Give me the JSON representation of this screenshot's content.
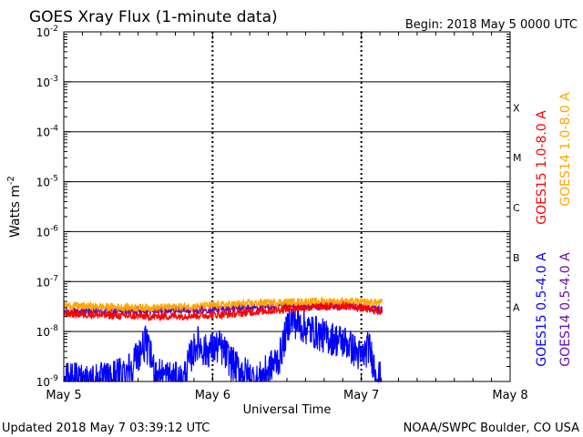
{
  "chart_data": {
    "type": "line",
    "title": "GOES Xray Flux (1-minute data)",
    "begin_label": "Begin:  2018 May 5 0000 UTC",
    "xlabel": "Universal Time",
    "ylabel": "Watts m",
    "ylabel_superscript": "-2",
    "y_scale": "log",
    "ylim": [
      1e-09,
      0.01
    ],
    "y_ticks": [
      {
        "mantissa": "10",
        "exp": "-9"
      },
      {
        "mantissa": "10",
        "exp": "-8"
      },
      {
        "mantissa": "10",
        "exp": "-7"
      },
      {
        "mantissa": "10",
        "exp": "-6"
      },
      {
        "mantissa": "10",
        "exp": "-5"
      },
      {
        "mantissa": "10",
        "exp": "-4"
      },
      {
        "mantissa": "10",
        "exp": "-3"
      },
      {
        "mantissa": "10",
        "exp": "-2"
      }
    ],
    "x_range_days": [
      0,
      3
    ],
    "x_ticks": [
      "May 5",
      "May 6",
      "May 7",
      "May 8"
    ],
    "flare_classes": [
      "A",
      "B",
      "C",
      "M",
      "X"
    ],
    "grid": true,
    "legend_placement": "right",
    "series": [
      {
        "name": "GOES15 1.0-8.0 A",
        "color": "#ff0000",
        "end_day": 2.14,
        "points": [
          [
            0,
            2.3e-08
          ],
          [
            0.3,
            2.1e-08
          ],
          [
            0.6,
            2e-08
          ],
          [
            0.9,
            2.1e-08
          ],
          [
            1.1,
            2.2e-08
          ],
          [
            1.3,
            2.5e-08
          ],
          [
            1.6,
            3e-08
          ],
          [
            1.9,
            3.3e-08
          ],
          [
            2.14,
            2.5e-08
          ]
        ]
      },
      {
        "name": "GOES14 1.0-8.0 A",
        "color": "#ffa500",
        "end_day": 2.14,
        "points": [
          [
            0,
            3.3e-08
          ],
          [
            0.3,
            3.1e-08
          ],
          [
            0.6,
            3e-08
          ],
          [
            0.9,
            3.2e-08
          ],
          [
            1.2,
            3.6e-08
          ],
          [
            1.5,
            3.9e-08
          ],
          [
            1.8,
            4e-08
          ],
          [
            2.14,
            3.8e-08
          ]
        ]
      },
      {
        "name": "GOES15 0.5-4.0 A",
        "color": "#0000ff",
        "end_day": 2.14,
        "points": [
          [
            0,
            1.1e-09
          ],
          [
            0.3,
            1.1e-09
          ],
          [
            0.45,
            2e-09
          ],
          [
            0.55,
            6e-09
          ],
          [
            0.62,
            1.5e-09
          ],
          [
            0.8,
            1e-09
          ],
          [
            0.85,
            3e-09
          ],
          [
            0.9,
            6e-09
          ],
          [
            0.95,
            4e-09
          ],
          [
            1.05,
            5e-09
          ],
          [
            1.15,
            2e-09
          ],
          [
            1.3,
            1e-09
          ],
          [
            1.45,
            3e-09
          ],
          [
            1.52,
            1.8e-08
          ],
          [
            1.6,
            1.3e-08
          ],
          [
            1.75,
            8e-09
          ],
          [
            1.9,
            6e-09
          ],
          [
            2.0,
            3e-09
          ],
          [
            2.05,
            5e-09
          ],
          [
            2.1,
            1.5e-09
          ],
          [
            2.14,
            1e-09
          ]
        ]
      },
      {
        "name": "GOES14 0.5-4.0 A",
        "color": "#6a0dad",
        "end_day": 2.14,
        "points": [
          [
            0,
            2.5e-08
          ],
          [
            0.5,
            2.6e-08
          ],
          [
            1.0,
            2.8e-08
          ],
          [
            1.5,
            3.2e-08
          ],
          [
            2.0,
            3.1e-08
          ],
          [
            2.14,
            2.7e-08
          ]
        ]
      }
    ]
  },
  "footer": {
    "updated": "Updated 2018 May  7 03:39:12 UTC",
    "credit": "NOAA/SWPC Boulder, CO USA"
  }
}
